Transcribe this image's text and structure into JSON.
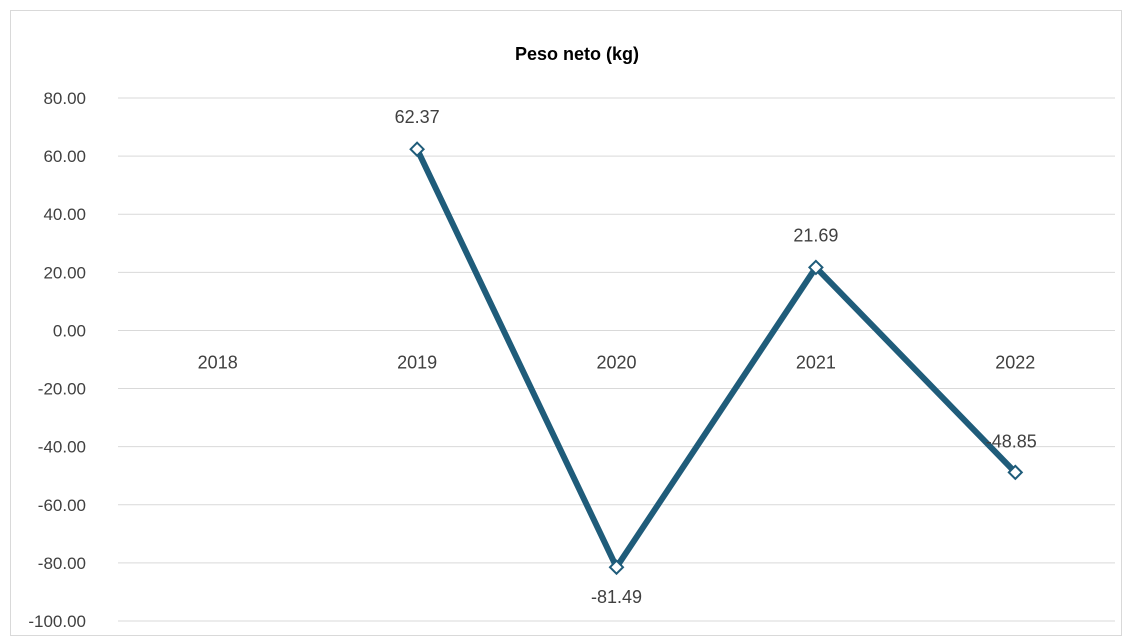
{
  "chart_data": {
    "type": "line",
    "title": "Peso neto (kg)",
    "xlabel": "",
    "ylabel": "",
    "categories": [
      "2018",
      "2019",
      "2020",
      "2021",
      "2022"
    ],
    "series": [
      {
        "values": [
          null,
          62.37,
          -81.49,
          21.69,
          -48.85
        ],
        "labels": [
          "",
          "62.37",
          "-81.49",
          "21.69",
          "-48.85"
        ],
        "color": "#1f5c7a",
        "marker": "diamond-open"
      }
    ],
    "yticks": [
      "80.00",
      "60.00",
      "40.00",
      "20.00",
      "0.00",
      "-20.00",
      "-40.00",
      "-60.00",
      "-80.00",
      "-100.00"
    ],
    "ylim": [
      -100,
      80
    ],
    "ystep": 20,
    "grid": true,
    "legend": "none"
  }
}
